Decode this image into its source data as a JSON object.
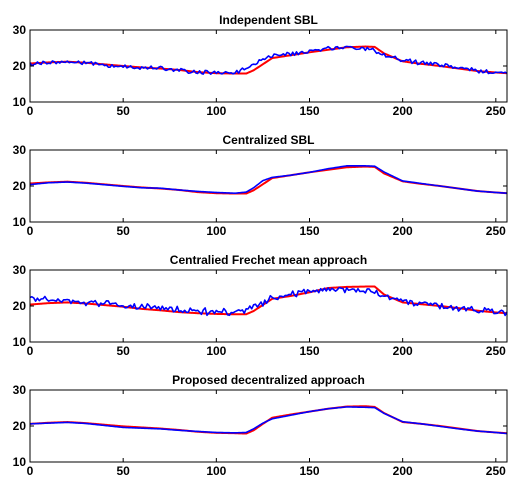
{
  "chart_data": [
    {
      "type": "line",
      "title": "Independent SBL",
      "xlabel": "",
      "ylabel": "",
      "xlim": [
        0,
        256
      ],
      "ylim": [
        10,
        30
      ],
      "xticks": [
        0,
        50,
        100,
        150,
        200,
        250
      ],
      "yticks": [
        10,
        20,
        30
      ],
      "grid": false,
      "series": [
        {
          "color": "#ff0000",
          "noise": 0,
          "smooth": 0,
          "x": [
            0,
            10,
            20,
            30,
            50,
            60,
            70,
            80,
            90,
            100,
            110,
            116,
            120,
            125,
            130,
            140,
            150,
            160,
            170,
            180,
            185,
            190,
            200,
            210,
            220,
            230,
            240,
            250,
            256
          ],
          "y": [
            20.7,
            21.0,
            21.2,
            20.9,
            20.0,
            19.6,
            19.3,
            18.9,
            18.3,
            18.0,
            17.9,
            17.9,
            18.8,
            20.5,
            22.2,
            23.0,
            23.8,
            24.5,
            25.2,
            25.4,
            25.3,
            23.5,
            21.3,
            20.6,
            20.0,
            19.3,
            18.6,
            18.2,
            18.0
          ]
        },
        {
          "color": "#0000ff",
          "noise": 0.45,
          "smooth": 0,
          "x": [
            0,
            10,
            20,
            30,
            50,
            60,
            70,
            80,
            90,
            100,
            110,
            116,
            120,
            125,
            130,
            140,
            150,
            160,
            170,
            180,
            185,
            190,
            200,
            210,
            220,
            230,
            240,
            250,
            256
          ],
          "y": [
            20.6,
            21.0,
            21.1,
            20.8,
            19.8,
            19.6,
            19.3,
            18.8,
            18.3,
            18.1,
            18.3,
            19.2,
            20.2,
            21.8,
            22.8,
            23.4,
            24.0,
            24.8,
            25.2,
            24.8,
            24.4,
            23.0,
            21.8,
            20.8,
            20.2,
            19.5,
            18.7,
            18.2,
            18.0
          ]
        }
      ]
    },
    {
      "type": "line",
      "title": "Centralized SBL",
      "xlabel": "",
      "ylabel": "",
      "xlim": [
        0,
        256
      ],
      "ylim": [
        10,
        30
      ],
      "xticks": [
        0,
        50,
        100,
        150,
        200,
        250
      ],
      "yticks": [
        10,
        20,
        30
      ],
      "grid": false,
      "series": [
        {
          "color": "#ff0000",
          "noise": 0,
          "smooth": 0,
          "x": [
            0,
            10,
            20,
            30,
            50,
            60,
            70,
            80,
            90,
            100,
            110,
            116,
            120,
            125,
            130,
            140,
            150,
            160,
            170,
            180,
            185,
            190,
            200,
            210,
            220,
            230,
            240,
            250,
            256
          ],
          "y": [
            20.7,
            21.0,
            21.2,
            20.9,
            20.0,
            19.6,
            19.3,
            18.9,
            18.3,
            18.0,
            17.9,
            17.9,
            18.8,
            20.5,
            22.2,
            23.0,
            23.8,
            24.5,
            25.2,
            25.4,
            25.3,
            23.5,
            21.3,
            20.6,
            20.0,
            19.3,
            18.6,
            18.2,
            18.0
          ]
        },
        {
          "color": "#0000ff",
          "noise": 0,
          "smooth": 0,
          "x": [
            0,
            10,
            20,
            30,
            50,
            60,
            70,
            80,
            90,
            100,
            110,
            116,
            120,
            125,
            130,
            140,
            150,
            160,
            170,
            180,
            185,
            190,
            200,
            210,
            220,
            230,
            240,
            250,
            256
          ],
          "y": [
            20.4,
            20.9,
            21.1,
            20.8,
            19.9,
            19.5,
            19.4,
            18.9,
            18.5,
            18.2,
            18.0,
            18.3,
            19.5,
            21.5,
            22.4,
            23.0,
            23.8,
            24.8,
            25.6,
            25.6,
            25.5,
            23.9,
            21.4,
            20.7,
            20.0,
            19.3,
            18.6,
            18.2,
            18.0
          ]
        }
      ]
    },
    {
      "type": "line",
      "title": "Centralied Frechet mean approach",
      "xlabel": "",
      "ylabel": "",
      "xlim": [
        0,
        256
      ],
      "ylim": [
        10,
        30
      ],
      "xticks": [
        0,
        50,
        100,
        150,
        200,
        250
      ],
      "yticks": [
        10,
        20,
        30
      ],
      "grid": false,
      "series": [
        {
          "color": "#ff0000",
          "noise": 0,
          "smooth": 0,
          "x": [
            0,
            10,
            20,
            30,
            50,
            60,
            70,
            80,
            90,
            100,
            110,
            116,
            120,
            125,
            130,
            140,
            150,
            160,
            170,
            180,
            185,
            190,
            200,
            210,
            220,
            230,
            240,
            250,
            256
          ],
          "y": [
            20.4,
            20.8,
            21.0,
            20.7,
            19.8,
            19.2,
            18.8,
            18.3,
            18.0,
            17.8,
            17.7,
            17.7,
            18.6,
            20.3,
            22.0,
            22.8,
            23.8,
            25.0,
            25.3,
            25.4,
            25.4,
            23.2,
            21.0,
            20.5,
            20.0,
            19.4,
            18.7,
            18.2,
            18.0
          ]
        },
        {
          "color": "#0000ff",
          "noise": 0.75,
          "smooth": 0,
          "x": [
            0,
            10,
            20,
            30,
            50,
            60,
            70,
            80,
            90,
            100,
            110,
            116,
            120,
            125,
            130,
            140,
            150,
            160,
            170,
            180,
            185,
            190,
            200,
            210,
            220,
            230,
            240,
            250,
            256
          ],
          "y": [
            22.0,
            21.8,
            21.2,
            21.0,
            20.2,
            19.8,
            19.3,
            18.9,
            18.5,
            18.3,
            18.2,
            18.5,
            19.6,
            21.0,
            22.4,
            23.2,
            24.0,
            24.5,
            24.6,
            24.3,
            23.8,
            22.8,
            21.5,
            20.6,
            20.0,
            19.3,
            18.7,
            18.4,
            18.3
          ]
        }
      ]
    },
    {
      "type": "line",
      "title": "Proposed decentralized approach",
      "xlabel": "",
      "ylabel": "",
      "xlim": [
        0,
        256
      ],
      "ylim": [
        10,
        30
      ],
      "xticks": [
        0,
        50,
        100,
        150,
        200,
        250
      ],
      "yticks": [
        10,
        20,
        30
      ],
      "grid": false,
      "series": [
        {
          "color": "#ff0000",
          "noise": 0,
          "smooth": 0,
          "x": [
            0,
            10,
            20,
            30,
            50,
            60,
            70,
            80,
            90,
            100,
            110,
            116,
            120,
            125,
            130,
            140,
            150,
            160,
            170,
            180,
            185,
            190,
            200,
            210,
            220,
            230,
            240,
            250,
            256
          ],
          "y": [
            20.6,
            20.9,
            21.1,
            20.8,
            19.9,
            19.6,
            19.3,
            18.9,
            18.4,
            18.1,
            18.0,
            17.9,
            18.8,
            20.6,
            22.3,
            23.2,
            24.0,
            24.8,
            25.4,
            25.5,
            25.3,
            23.6,
            21.1,
            20.6,
            20.0,
            19.3,
            18.6,
            18.2,
            18.0
          ]
        },
        {
          "color": "#0000ff",
          "noise": 0,
          "smooth": 0,
          "x": [
            0,
            10,
            20,
            30,
            50,
            60,
            70,
            80,
            90,
            100,
            110,
            116,
            120,
            125,
            130,
            140,
            150,
            160,
            170,
            180,
            185,
            190,
            200,
            210,
            220,
            230,
            240,
            250,
            256
          ],
          "y": [
            20.6,
            20.8,
            21.0,
            20.7,
            19.6,
            19.4,
            19.2,
            18.8,
            18.5,
            18.2,
            18.1,
            18.2,
            19.2,
            20.8,
            22.0,
            23.0,
            24.0,
            24.8,
            25.3,
            25.2,
            25.1,
            23.5,
            21.2,
            20.6,
            19.9,
            19.2,
            18.6,
            18.2,
            17.9
          ]
        }
      ]
    }
  ]
}
